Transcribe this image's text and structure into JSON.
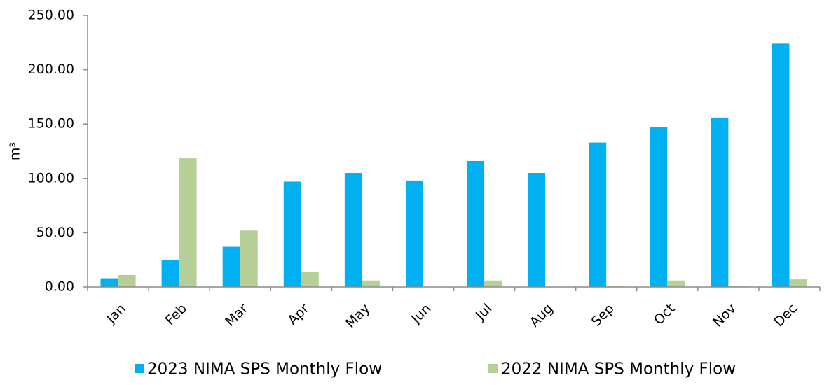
{
  "chart_data": {
    "type": "bar",
    "y_label": "m³",
    "categories": [
      "Jan",
      "Feb",
      "Mar",
      "Apr",
      "May",
      "Jun",
      "Jul",
      "Aug",
      "Sep",
      "Oct",
      "Nov",
      "Dec"
    ],
    "series": [
      {
        "name": "2023 NIMA SPS Monthly Flow",
        "color": "#00b0f0",
        "values": [
          8,
          25,
          37,
          97,
          105,
          98,
          116,
          105,
          133,
          147,
          156,
          224
        ]
      },
      {
        "name": "2022 NIMA SPS Monthly Flow",
        "color": "#b5cf97",
        "values": [
          11,
          118.5,
          52,
          14,
          6,
          0,
          6,
          0,
          1,
          6,
          1,
          7
        ]
      }
    ],
    "ylim": [
      0,
      250
    ],
    "yticks": [
      {
        "value": 0,
        "label": "0.00"
      },
      {
        "value": 50,
        "label": "50.00"
      },
      {
        "value": 100,
        "label": "100.00"
      },
      {
        "value": 150,
        "label": "150.00"
      },
      {
        "value": 200,
        "label": "200.00"
      },
      {
        "value": 250,
        "label": "250.00"
      }
    ],
    "grid": false,
    "legend": "bottom"
  }
}
